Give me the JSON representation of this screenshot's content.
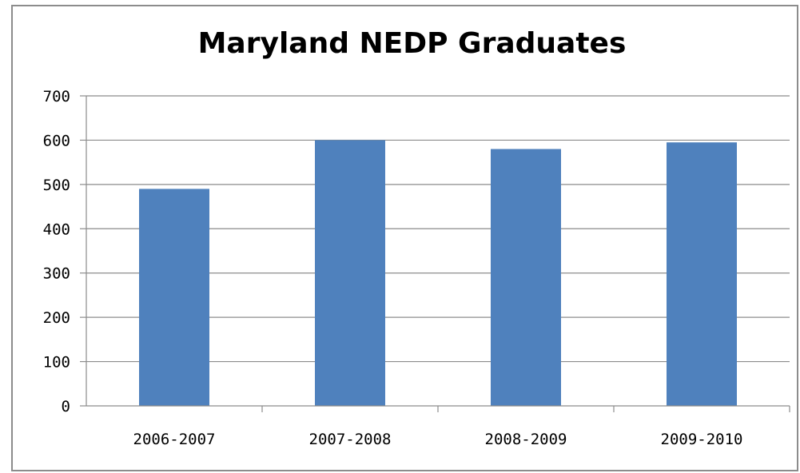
{
  "chart_data": {
    "type": "bar",
    "title": "Maryland NEDP Graduates",
    "xlabel": "",
    "ylabel": "",
    "categories": [
      "2006-2007",
      "2007-2008",
      "2008-2009",
      "2009-2010"
    ],
    "values": [
      490,
      600,
      580,
      595
    ],
    "ylim": [
      0,
      700
    ],
    "yticks": [
      0,
      100,
      200,
      300,
      400,
      500,
      600,
      700
    ],
    "grid": true,
    "legend": "none",
    "colors": {
      "bar": "#4f81bd",
      "grid": "#8c8c8c",
      "axis": "#8c8c8c"
    }
  }
}
